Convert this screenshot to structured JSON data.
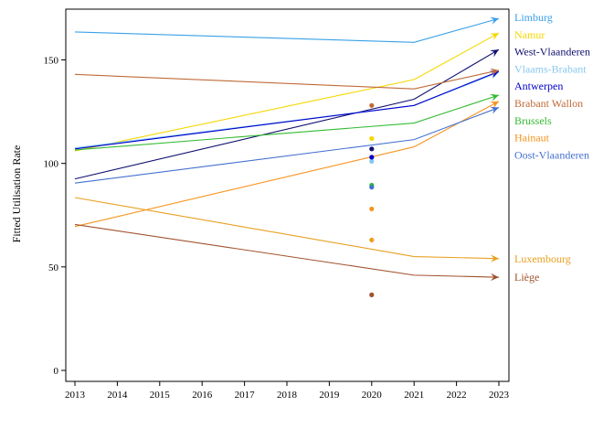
{
  "chart_data": {
    "type": "line",
    "title": "",
    "xlabel": "",
    "ylabel": "Fitted Utilisation Rate",
    "xlim": [
      2013,
      2023
    ],
    "ylim": [
      0,
      175
    ],
    "x_ticks": [
      2013,
      2014,
      2015,
      2016,
      2017,
      2018,
      2019,
      2020,
      2021,
      2022,
      2023
    ],
    "y_ticks": [
      0,
      50,
      100,
      150
    ],
    "grid": false,
    "legend": "right, labels at line ends",
    "series": [
      {
        "name": "Limburg",
        "color": "#3aa0e8",
        "points": [
          [
            2013,
            163.5
          ],
          [
            2021,
            158.5
          ],
          [
            2023,
            170
          ]
        ],
        "obs_2020": null
      },
      {
        "name": "Namur",
        "color": "#f5d800",
        "points": [
          [
            2013,
            106
          ],
          [
            2021,
            140.5
          ],
          [
            2023,
            163
          ]
        ],
        "obs_2020": 112
      },
      {
        "name": "West-Vlaanderen",
        "color": "#101070",
        "points": [
          [
            2013,
            92.5
          ],
          [
            2021,
            131
          ],
          [
            2023,
            155
          ]
        ],
        "obs_2020": 107
      },
      {
        "name": "Vlaams-Brabant",
        "color": "#88c8ee",
        "points": [
          [
            2013,
            107.5
          ],
          [
            2021,
            128
          ],
          [
            2023,
            144
          ]
        ],
        "obs_2020": 101
      },
      {
        "name": "Antwerpen",
        "color": "#0000cc",
        "points": [
          [
            2013,
            107
          ],
          [
            2021,
            128
          ],
          [
            2023,
            144.5
          ]
        ],
        "obs_2020": 103
      },
      {
        "name": "Brabant Wallon",
        "color": "#c06a38",
        "points": [
          [
            2013,
            143
          ],
          [
            2021,
            136
          ],
          [
            2023,
            145
          ]
        ],
        "obs_2020": 128
      },
      {
        "name": "Brussels",
        "color": "#33bb33",
        "points": [
          [
            2013,
            106.5
          ],
          [
            2021,
            119.5
          ],
          [
            2023,
            133
          ]
        ],
        "obs_2020": 89.5
      },
      {
        "name": "Hainaut",
        "color": "#f7941d",
        "points": [
          [
            2013,
            69.5
          ],
          [
            2021,
            108
          ],
          [
            2023,
            130
          ]
        ],
        "obs_2020": 78
      },
      {
        "name": "Oost-Vlaanderen",
        "color": "#4470d0",
        "points": [
          [
            2013,
            90.5
          ],
          [
            2021,
            111.5
          ],
          [
            2023,
            127
          ]
        ],
        "obs_2020": 88.5
      },
      {
        "name": "Luxembourg",
        "color": "#e8a020",
        "points": [
          [
            2013,
            83.5
          ],
          [
            2021,
            55
          ],
          [
            2023,
            54
          ]
        ],
        "obs_2020": 63
      },
      {
        "name": "Liège",
        "color": "#a0522d",
        "points": [
          [
            2013,
            70.5
          ],
          [
            2021,
            46
          ],
          [
            2023,
            45
          ]
        ],
        "obs_2020": 36.5
      }
    ]
  }
}
